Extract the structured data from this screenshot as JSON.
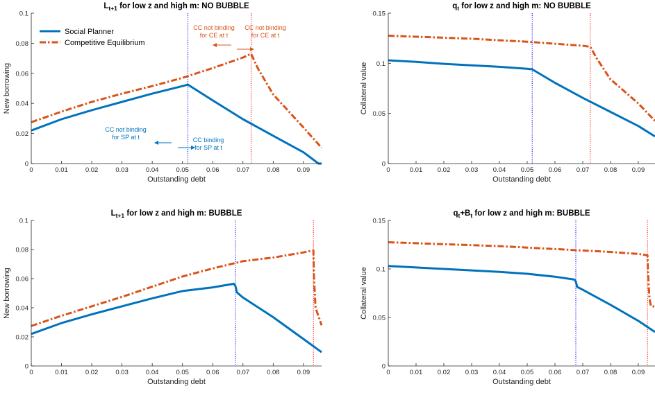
{
  "colors": {
    "social_planner": "#0072BD",
    "competitive_equilibrium": "#D95319",
    "sp_vline": "#0000FF",
    "ce_vline": "#FF0000",
    "axis": "#262626",
    "annotation_sp": "#0072BD",
    "annotation_ce": "#D95319"
  },
  "chart_data": [
    {
      "type": "line",
      "title": "L",
      "title_sub": "t+1",
      "title_rest": " for low z and high m: NO BUBBLE",
      "xlabel": "Outstanding debt",
      "ylabel": "New borrowing",
      "xlim": [
        0,
        0.096
      ],
      "ylim": [
        0,
        0.1
      ],
      "xticks": [
        "0",
        "0.01",
        "0.02",
        "0.03",
        "0.04",
        "0.05",
        "0.06",
        "0.07",
        "0.08",
        "0.09"
      ],
      "yticks": [
        "0",
        "0.02",
        "0.04",
        "0.06",
        "0.08",
        "0.1"
      ],
      "legend": [
        "Social Planner",
        "Competitive Equilibrium"
      ],
      "legend_position": "top-left",
      "vlines": [
        {
          "x": 0.0518,
          "series": "sp"
        },
        {
          "x": 0.0727,
          "series": "ce"
        }
      ],
      "annotations": {
        "ce_not_binding_left": [
          "CC not binding",
          "for CE at t"
        ],
        "ce_not_binding_right": [
          "CC not binding",
          "for CE at t"
        ],
        "sp_not_binding": [
          "CC not binding",
          "for SP at t"
        ],
        "sp_binding": [
          "CC binding",
          "for SP at t"
        ]
      },
      "series": [
        {
          "name": "Social Planner",
          "key": "sp",
          "x": [
            0,
            0.01,
            0.02,
            0.03,
            0.04,
            0.05,
            0.0518,
            0.06,
            0.07,
            0.08,
            0.09,
            0.095,
            0.096
          ],
          "y": [
            0.022,
            0.0295,
            0.0355,
            0.041,
            0.0465,
            0.0515,
            0.0525,
            0.042,
            0.0295,
            0.0185,
            0.0075,
            0.0,
            0.0
          ]
        },
        {
          "name": "Competitive Equilibrium",
          "key": "ce",
          "x": [
            0,
            0.01,
            0.02,
            0.03,
            0.04,
            0.05,
            0.06,
            0.07,
            0.0727,
            0.075,
            0.08,
            0.09,
            0.096
          ],
          "y": [
            0.0275,
            0.0345,
            0.041,
            0.0465,
            0.0515,
            0.057,
            0.0635,
            0.0705,
            0.073,
            0.063,
            0.046,
            0.024,
            0.0105
          ]
        }
      ]
    },
    {
      "type": "line",
      "title": "q",
      "title_sub": "t",
      "title_rest": " for low z and high m: NO BUBBLE",
      "xlabel": "Outstanding debt",
      "ylabel": "Collateral value",
      "xlim": [
        0,
        0.096
      ],
      "ylim": [
        0,
        0.15
      ],
      "xticks": [
        "0",
        "0.01",
        "0.02",
        "0.03",
        "0.04",
        "0.05",
        "0.06",
        "0.07",
        "0.08",
        "0.09"
      ],
      "yticks": [
        "0",
        "0.05",
        "0.1",
        "0.15"
      ],
      "vlines": [
        {
          "x": 0.0518,
          "series": "sp"
        },
        {
          "x": 0.0727,
          "series": "ce"
        }
      ],
      "series": [
        {
          "name": "Social Planner",
          "key": "sp",
          "x": [
            0,
            0.01,
            0.02,
            0.03,
            0.04,
            0.05,
            0.0518,
            0.06,
            0.07,
            0.08,
            0.09,
            0.096
          ],
          "y": [
            0.103,
            0.1015,
            0.0995,
            0.098,
            0.0965,
            0.0945,
            0.094,
            0.0805,
            0.0655,
            0.0515,
            0.0375,
            0.027
          ]
        },
        {
          "name": "Competitive Equilibrium",
          "key": "ce",
          "x": [
            0,
            0.01,
            0.02,
            0.03,
            0.04,
            0.05,
            0.06,
            0.07,
            0.0727,
            0.075,
            0.08,
            0.09,
            0.096
          ],
          "y": [
            0.1275,
            0.1265,
            0.1255,
            0.1245,
            0.123,
            0.1215,
            0.1195,
            0.1175,
            0.1165,
            0.105,
            0.084,
            0.06,
            0.0425
          ]
        }
      ]
    },
    {
      "type": "line",
      "title": "L",
      "title_sub": "t+1",
      "title_rest": " for low z and high m: BUBBLE",
      "xlabel": "Outstanding debt",
      "ylabel": "New borrowing",
      "xlim": [
        0,
        0.096
      ],
      "ylim": [
        0,
        0.1
      ],
      "xticks": [
        "0",
        "0.01",
        "0.02",
        "0.03",
        "0.04",
        "0.05",
        "0.06",
        "0.07",
        "0.08",
        "0.09"
      ],
      "yticks": [
        "0",
        "0.02",
        "0.04",
        "0.06",
        "0.08",
        "0.1"
      ],
      "vlines": [
        {
          "x": 0.0675,
          "series": "sp"
        },
        {
          "x": 0.0933,
          "series": "ce"
        }
      ],
      "series": [
        {
          "name": "Social Planner",
          "key": "sp",
          "x": [
            0,
            0.01,
            0.02,
            0.03,
            0.04,
            0.05,
            0.06,
            0.067,
            0.0675,
            0.068,
            0.07,
            0.08,
            0.09,
            0.096
          ],
          "y": [
            0.022,
            0.0295,
            0.0355,
            0.041,
            0.0465,
            0.0515,
            0.054,
            0.0565,
            0.055,
            0.0505,
            0.047,
            0.0335,
            0.0185,
            0.0095
          ]
        },
        {
          "name": "Competitive Equilibrium",
          "key": "ce",
          "x": [
            0,
            0.01,
            0.02,
            0.03,
            0.04,
            0.05,
            0.06,
            0.07,
            0.08,
            0.09,
            0.0933,
            0.0935,
            0.094,
            0.096
          ],
          "y": [
            0.0275,
            0.0345,
            0.041,
            0.0475,
            0.0545,
            0.0615,
            0.067,
            0.072,
            0.0745,
            0.078,
            0.0795,
            0.06,
            0.04,
            0.028
          ]
        }
      ]
    },
    {
      "type": "line",
      "title": "q",
      "title_sub": "t",
      "title_mid": "+B",
      "title_sub2": "t",
      "title_rest": " for low z and high m: BUBBLE",
      "xlabel": "Outstanding debt",
      "ylabel": "Collateral value",
      "xlim": [
        0,
        0.096
      ],
      "ylim": [
        0,
        0.15
      ],
      "xticks": [
        "0",
        "0.01",
        "0.02",
        "0.03",
        "0.04",
        "0.05",
        "0.06",
        "0.07",
        "0.08",
        "0.09"
      ],
      "yticks": [
        "0",
        "0.05",
        "0.1",
        "0.15"
      ],
      "vlines": [
        {
          "x": 0.0675,
          "series": "sp"
        },
        {
          "x": 0.0933,
          "series": "ce"
        }
      ],
      "series": [
        {
          "name": "Social Planner",
          "key": "sp",
          "x": [
            0,
            0.01,
            0.02,
            0.03,
            0.04,
            0.05,
            0.06,
            0.067,
            0.0675,
            0.068,
            0.07,
            0.08,
            0.09,
            0.096
          ],
          "y": [
            0.103,
            0.1015,
            0.1,
            0.0985,
            0.097,
            0.095,
            0.092,
            0.089,
            0.087,
            0.0815,
            0.0785,
            0.063,
            0.0465,
            0.035
          ]
        },
        {
          "name": "Competitive Equilibrium",
          "key": "ce",
          "x": [
            0,
            0.01,
            0.02,
            0.03,
            0.04,
            0.05,
            0.06,
            0.07,
            0.08,
            0.09,
            0.0933,
            0.0935,
            0.094,
            0.0945,
            0.096
          ],
          "y": [
            0.1275,
            0.1265,
            0.1255,
            0.1245,
            0.1235,
            0.122,
            0.1205,
            0.119,
            0.1175,
            0.1155,
            0.114,
            0.095,
            0.07,
            0.062,
            0.061
          ]
        }
      ]
    }
  ]
}
